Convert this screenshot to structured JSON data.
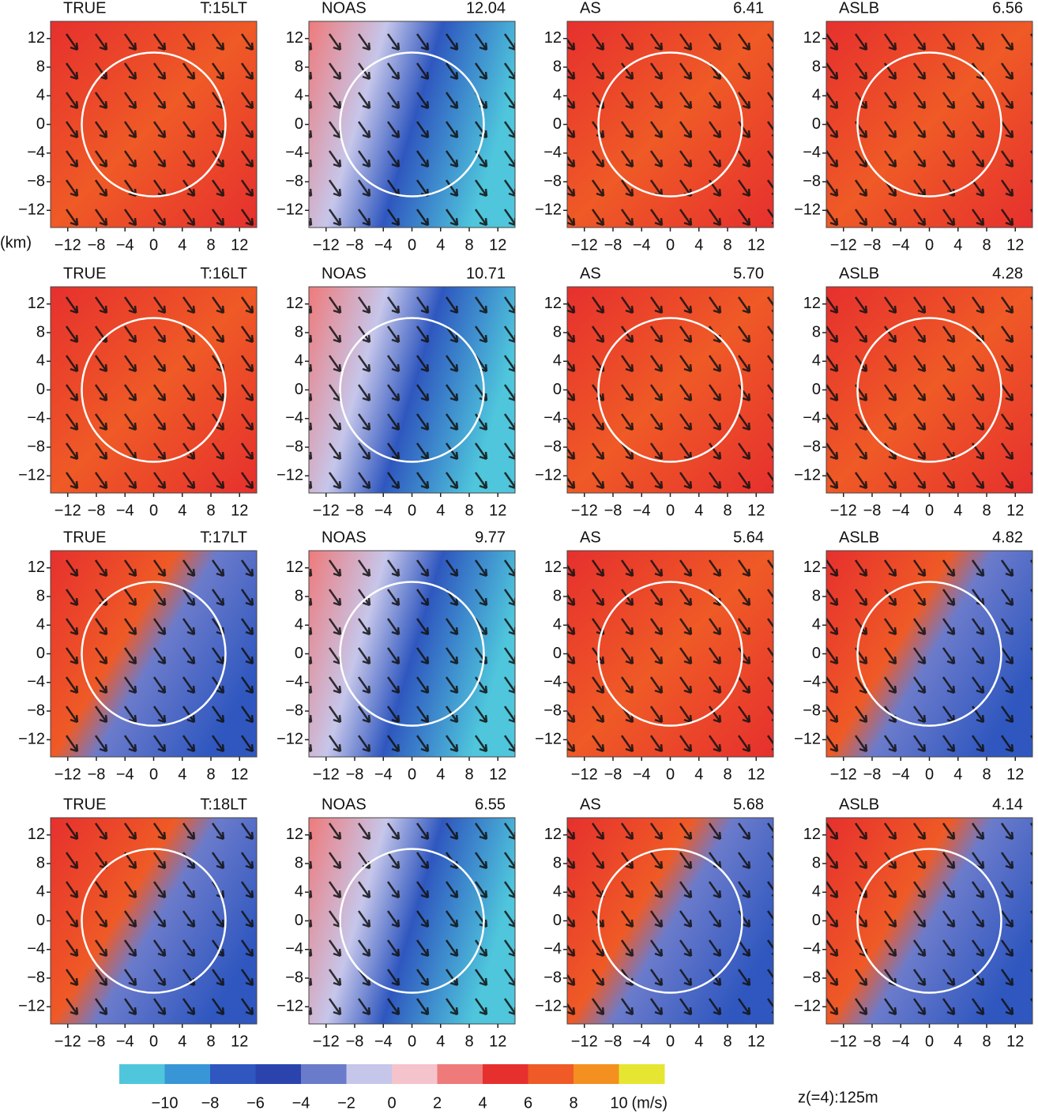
{
  "chart_data": {
    "type": "contour-grid",
    "panels": [
      {
        "title": "TRUE",
        "label": "T:15LT"
      },
      {
        "title": "NOAS",
        "label": "12.04"
      },
      {
        "title": "AS",
        "label": "6.41"
      },
      {
        "title": "ASLB",
        "label": "6.56"
      },
      {
        "title": "TRUE",
        "label": "T:16LT"
      },
      {
        "title": "NOAS",
        "label": "10.71"
      },
      {
        "title": "AS",
        "label": "5.70"
      },
      {
        "title": "ASLB",
        "label": "4.28"
      },
      {
        "title": "TRUE",
        "label": "T:17LT"
      },
      {
        "title": "NOAS",
        "label": "9.77"
      },
      {
        "title": "AS",
        "label": "5.64"
      },
      {
        "title": "ASLB",
        "label": "4.82"
      },
      {
        "title": "TRUE",
        "label": "T:18LT"
      },
      {
        "title": "NOAS",
        "label": "6.55"
      },
      {
        "title": "AS",
        "label": "5.68"
      },
      {
        "title": "ASLB",
        "label": "4.14"
      }
    ],
    "x_unit": "(km)",
    "xlim": [
      -14.4,
      14.4
    ],
    "ylim": [
      -14.4,
      14.4
    ],
    "ticks": [
      {
        "value": -12,
        "label": "−12"
      },
      {
        "value": -8,
        "label": "−8"
      },
      {
        "value": -4,
        "label": "−4"
      },
      0,
      4,
      8,
      12
    ],
    "colorbar": {
      "clim": [
        -12,
        12
      ],
      "colors": [
        "#4fc6dc",
        "#3896d6",
        "#2f57bf",
        "#2b44ad",
        "#6b7bcb",
        "#c6c6ea",
        "#f5c3cb",
        "#ef7a7a",
        "#e6302e",
        "#ef5a26",
        "#f4901f",
        "#e6e632"
      ],
      "ticks": [
        {
          "value": -10,
          "label": "−10"
        },
        {
          "value": -8,
          "label": "−8"
        },
        {
          "value": -6,
          "label": "−6"
        },
        {
          "value": -4,
          "label": "−4"
        },
        {
          "value": -2,
          "label": "−2"
        },
        0,
        2,
        4,
        6,
        8,
        10
      ],
      "unit": "(m/s)"
    },
    "note": "z(=4):125m"
  }
}
